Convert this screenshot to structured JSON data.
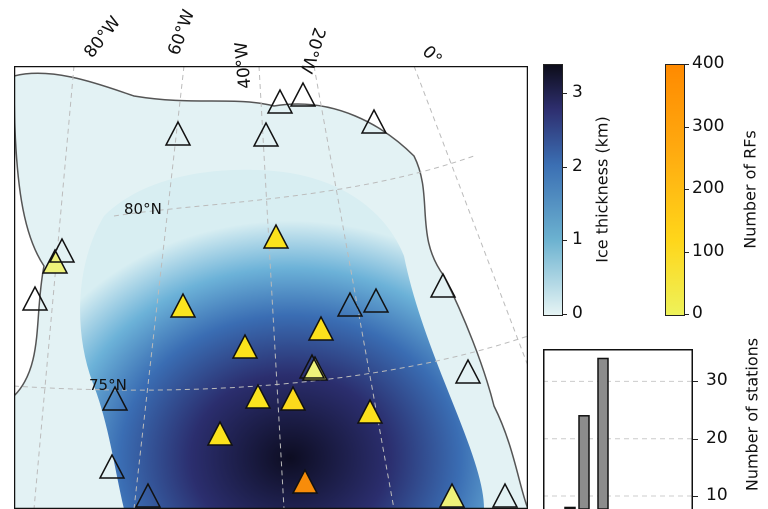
{
  "map": {
    "longitude_labels": [
      "80°W",
      "60°W",
      "40°W",
      "20°W",
      "0°"
    ],
    "latitude_labels": [
      "80°N",
      "75°N"
    ]
  },
  "ice_colorbar": {
    "label": "Ice thickness (km)",
    "ticks": [
      "0",
      "1",
      "2",
      "3"
    ],
    "range": [
      0,
      3.4
    ],
    "colors": [
      "#e6f4f4",
      "#6cb2d0",
      "#3b6fb3",
      "#2e2f70",
      "#0d0d1a"
    ]
  },
  "rf_colorbar": {
    "label": "Number of RFs",
    "ticks": [
      "0",
      "100",
      "200",
      "300",
      "400"
    ],
    "range": [
      0,
      400
    ],
    "colors": [
      "#eef25a",
      "#ffd61a",
      "#ffab10",
      "#ff8a00"
    ]
  },
  "histogram": {
    "ylabel": "Number of stations",
    "ticks": [
      "10",
      "20",
      "30"
    ],
    "values": [
      8,
      24,
      34
    ],
    "bar_color": "#8c8c8c"
  }
}
